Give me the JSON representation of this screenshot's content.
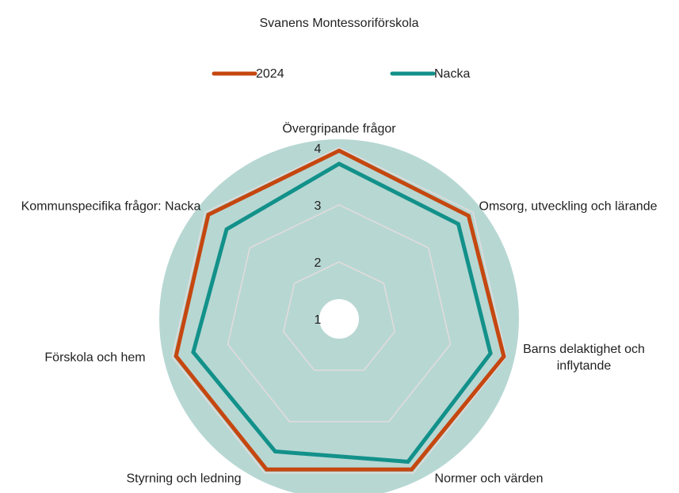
{
  "chart_data": {
    "type": "radar",
    "title": "Svanens Montessoriförskola",
    "categories": [
      "Övergripande frågor",
      "Omsorg, utveckling och lärande",
      "Barns delaktighet och inflytande",
      "Normer och värden",
      "Styrning och ledning",
      "Förskola och hem",
      "Kommunspecifika frågor: Nacka"
    ],
    "series": [
      {
        "name": "2024",
        "color": "#c5470f",
        "values": [
          3.95,
          3.9,
          3.96,
          3.93,
          3.93,
          3.93,
          3.93
        ]
      },
      {
        "name": "Nacka",
        "color": "#12918a",
        "values": [
          3.72,
          3.67,
          3.72,
          3.78,
          3.58,
          3.62,
          3.52
        ]
      }
    ],
    "ylim": [
      1,
      4.15
    ],
    "yticks": [
      1,
      2,
      3,
      4
    ],
    "grid": true,
    "legend": "top"
  }
}
